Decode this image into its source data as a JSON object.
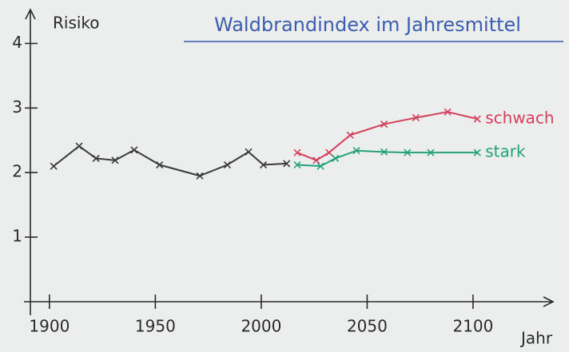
{
  "chart_data": {
    "type": "line",
    "title": "Waldbrandindex im Jahresmittel",
    "y_label": "Risiko",
    "x_label": "Jahr",
    "xlim": [
      1891,
      2137
    ],
    "xticks": [
      1900,
      1950,
      2000,
      2050,
      2100
    ],
    "ylim": [
      0,
      4.5
    ],
    "yticks": [
      1,
      2,
      3,
      4
    ],
    "series": [
      {
        "color": "#3a3a3a",
        "x": [
          1902,
          1914,
          1922,
          1931,
          1940,
          1952,
          1971,
          1984,
          1994,
          2001,
          2012
        ],
        "values": [
          2.1,
          2.41,
          2.22,
          2.19,
          2.35,
          2.12,
          1.95,
          2.12,
          2.32,
          2.12,
          2.14
        ]
      },
      {
        "name": "schwach",
        "color": "#d4405c",
        "x": [
          2017,
          2026,
          2032,
          2042,
          2058,
          2073,
          2088,
          2102
        ],
        "values": [
          2.31,
          2.19,
          2.31,
          2.58,
          2.75,
          2.85,
          2.94,
          2.83
        ]
      },
      {
        "name": "stark",
        "color": "#26a07c",
        "x": [
          2017,
          2028,
          2035,
          2045,
          2058,
          2069,
          2080,
          2102
        ],
        "values": [
          2.12,
          2.1,
          2.22,
          2.34,
          2.32,
          2.31,
          2.31,
          2.31
        ]
      }
    ]
  }
}
